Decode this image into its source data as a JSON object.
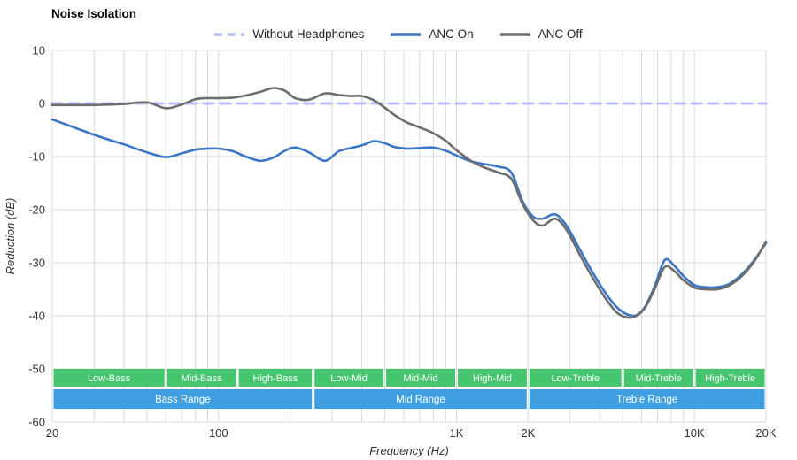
{
  "chart_data": {
    "type": "line",
    "title": "Noise Isolation",
    "xlabel": "Frequency (Hz)",
    "ylabel": "Reduction (dB)",
    "x_scale": "log",
    "xlim": [
      20,
      20000
    ],
    "ylim": [
      -60,
      10
    ],
    "grid": true,
    "legend_position": "top",
    "y_ticks": [
      10,
      0,
      -10,
      -20,
      -30,
      -40,
      -50,
      -60
    ],
    "x_ticks": [
      {
        "value": 20,
        "label": "20"
      },
      {
        "value": 100,
        "label": "100"
      },
      {
        "value": 1000,
        "label": "1K"
      },
      {
        "value": 2000,
        "label": "2K"
      },
      {
        "value": 10000,
        "label": "10K"
      },
      {
        "value": 20000,
        "label": "20K"
      }
    ],
    "colors": {
      "grid": "#d8d8d8",
      "axis_text": "#333333",
      "band_green": "#45c56d",
      "band_blue": "#3f9fe0",
      "band_text": "#ffffff"
    },
    "series": [
      {
        "name": "Without Headphones",
        "color": "#b8bbfa",
        "dashed": true,
        "width": 3,
        "x": [
          20,
          20000
        ],
        "y": [
          0,
          0
        ]
      },
      {
        "name": "ANC On",
        "color": "#3b76c4",
        "dashed": false,
        "width": 2.6,
        "x": [
          20,
          25,
          30,
          35,
          40,
          50,
          60,
          70,
          80,
          90,
          100,
          115,
          130,
          150,
          170,
          190,
          210,
          240,
          280,
          320,
          360,
          400,
          450,
          500,
          550,
          620,
          700,
          800,
          900,
          1000,
          1150,
          1300,
          1500,
          1700,
          1900,
          2100,
          2300,
          2600,
          2900,
          3300,
          3700,
          4200,
          4700,
          5200,
          5700,
          6200,
          6800,
          7500,
          8200,
          9000,
          10000,
          11000,
          12500,
          14000,
          16000,
          18000,
          20000
        ],
        "y": [
          -3.0,
          -4.6,
          -5.9,
          -6.9,
          -7.7,
          -9.2,
          -10.1,
          -9.4,
          -8.7,
          -8.5,
          -8.5,
          -9.0,
          -10.0,
          -10.8,
          -10.2,
          -8.9,
          -8.3,
          -9.2,
          -10.8,
          -9.0,
          -8.4,
          -7.9,
          -7.1,
          -7.5,
          -8.2,
          -8.5,
          -8.4,
          -8.3,
          -8.9,
          -9.8,
          -10.9,
          -11.4,
          -11.9,
          -13.0,
          -18.5,
          -21.3,
          -21.7,
          -20.9,
          -23.0,
          -27.5,
          -31.5,
          -35.5,
          -38.3,
          -39.7,
          -39.9,
          -38.3,
          -34.5,
          -29.5,
          -30.5,
          -32.5,
          -34.2,
          -34.6,
          -34.6,
          -34.0,
          -32.0,
          -29.3,
          -26.3
        ]
      },
      {
        "name": "ANC Off",
        "color": "#6d6d6d",
        "dashed": false,
        "width": 2.6,
        "x": [
          20,
          25,
          30,
          35,
          40,
          50,
          60,
          70,
          80,
          90,
          100,
          115,
          130,
          150,
          170,
          190,
          210,
          240,
          280,
          320,
          360,
          400,
          450,
          500,
          550,
          620,
          700,
          800,
          900,
          1000,
          1150,
          1300,
          1500,
          1700,
          1900,
          2100,
          2300,
          2600,
          2900,
          3300,
          3700,
          4200,
          4700,
          5200,
          5700,
          6200,
          6800,
          7500,
          8200,
          9000,
          10000,
          11000,
          12500,
          14000,
          16000,
          18000,
          20000
        ],
        "y": [
          -0.3,
          -0.3,
          -0.3,
          -0.2,
          -0.1,
          0.2,
          -0.9,
          -0.2,
          0.8,
          1.0,
          1.0,
          1.1,
          1.5,
          2.2,
          2.9,
          2.4,
          1.0,
          0.7,
          1.9,
          1.6,
          1.4,
          1.4,
          0.6,
          -0.8,
          -2.2,
          -3.6,
          -4.5,
          -5.6,
          -7.0,
          -8.8,
          -10.8,
          -12.0,
          -13.0,
          -14.2,
          -19.0,
          -22.0,
          -23.0,
          -21.7,
          -23.8,
          -28.5,
          -32.5,
          -36.5,
          -39.3,
          -40.3,
          -40.0,
          -38.5,
          -35.0,
          -30.8,
          -31.5,
          -33.3,
          -34.7,
          -35.0,
          -35.0,
          -34.3,
          -32.3,
          -29.5,
          -26.0
        ]
      }
    ],
    "bands": {
      "sub_ranges": [
        {
          "label": "Low-Bass",
          "from": 20,
          "to": 60
        },
        {
          "label": "Mid-Bass",
          "from": 60,
          "to": 120
        },
        {
          "label": "High-Bass",
          "from": 120,
          "to": 250
        },
        {
          "label": "Low-Mid",
          "from": 250,
          "to": 500
        },
        {
          "label": "Mid-Mid",
          "from": 500,
          "to": 1000
        },
        {
          "label": "High-Mid",
          "from": 1000,
          "to": 2000
        },
        {
          "label": "Low-Treble",
          "from": 2000,
          "to": 5000
        },
        {
          "label": "Mid-Treble",
          "from": 5000,
          "to": 10000
        },
        {
          "label": "High-Treble",
          "from": 10000,
          "to": 20000
        }
      ],
      "main_ranges": [
        {
          "label": "Bass Range",
          "from": 20,
          "to": 250
        },
        {
          "label": "Mid Range",
          "from": 250,
          "to": 2000
        },
        {
          "label": "Treble Range",
          "from": 2000,
          "to": 20000
        }
      ]
    }
  }
}
